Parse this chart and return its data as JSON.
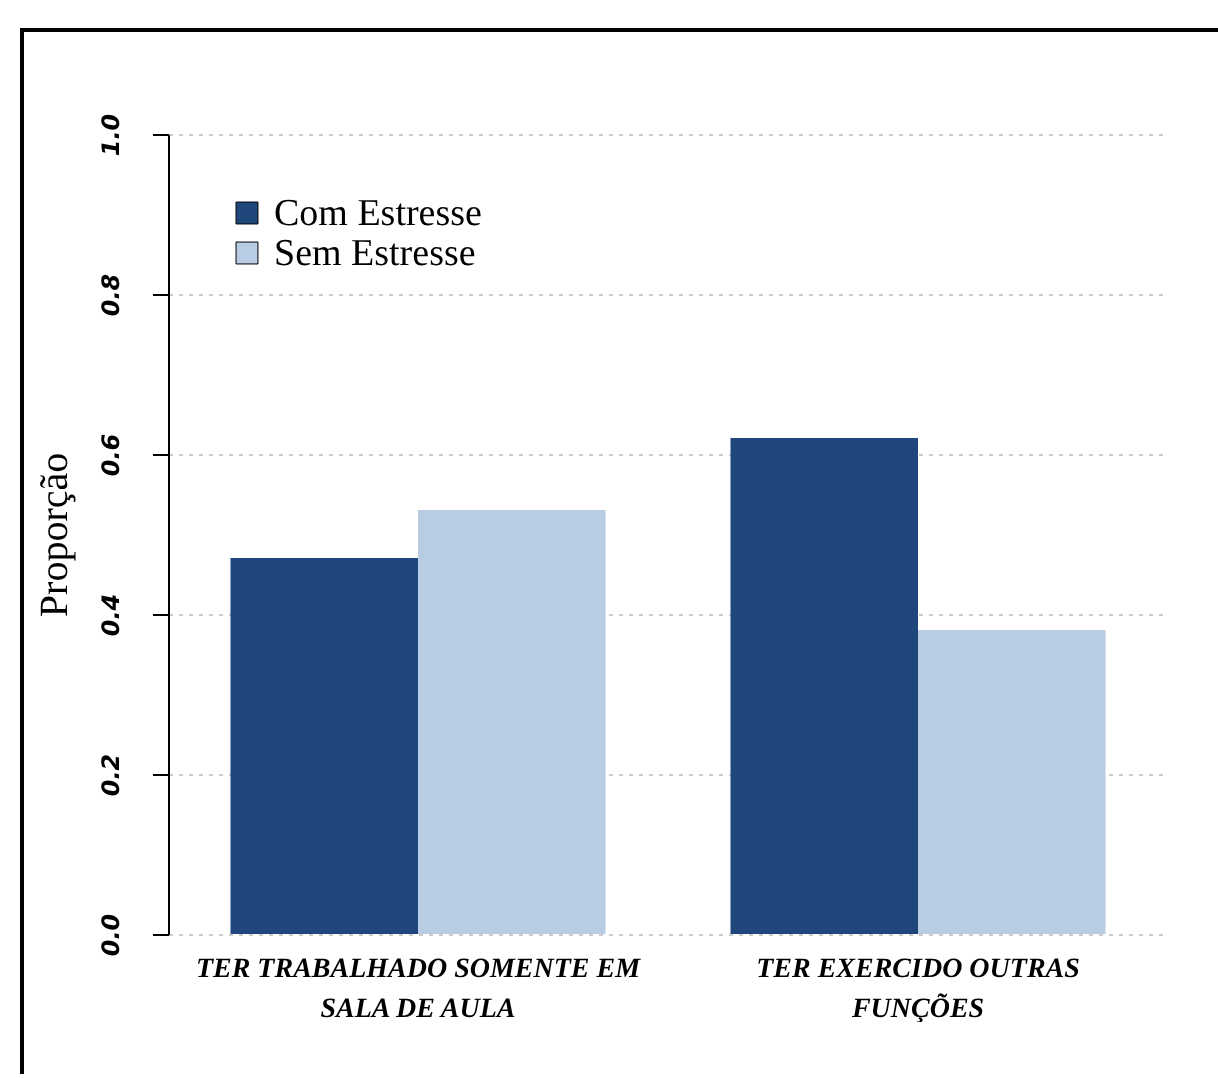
{
  "chart_data": {
    "type": "bar",
    "ylabel": "Proporção",
    "categories": [
      "TER TRABALHADO SOMENTE EM SALA DE AULA",
      "TER EXERCIDO OUTRAS FUNÇÕES"
    ],
    "series": [
      {
        "name": "Com Estresse",
        "color": "#1f477b",
        "values": [
          0.47,
          0.62
        ]
      },
      {
        "name": "Sem Estresse",
        "color": "#b8cce4",
        "values": [
          0.53,
          0.38
        ]
      }
    ],
    "ylim": [
      0,
      1
    ],
    "yticks": [
      {
        "value": 0,
        "label": "0.0"
      },
      {
        "value": 0.2,
        "label": "0.2"
      },
      {
        "value": 0.4,
        "label": "0.4"
      },
      {
        "value": 0.6,
        "label": "0.6"
      },
      {
        "value": 0.8,
        "label": "0.8"
      },
      {
        "value": 1,
        "label": "1.0"
      }
    ],
    "grid": "y",
    "legend": "top left"
  }
}
